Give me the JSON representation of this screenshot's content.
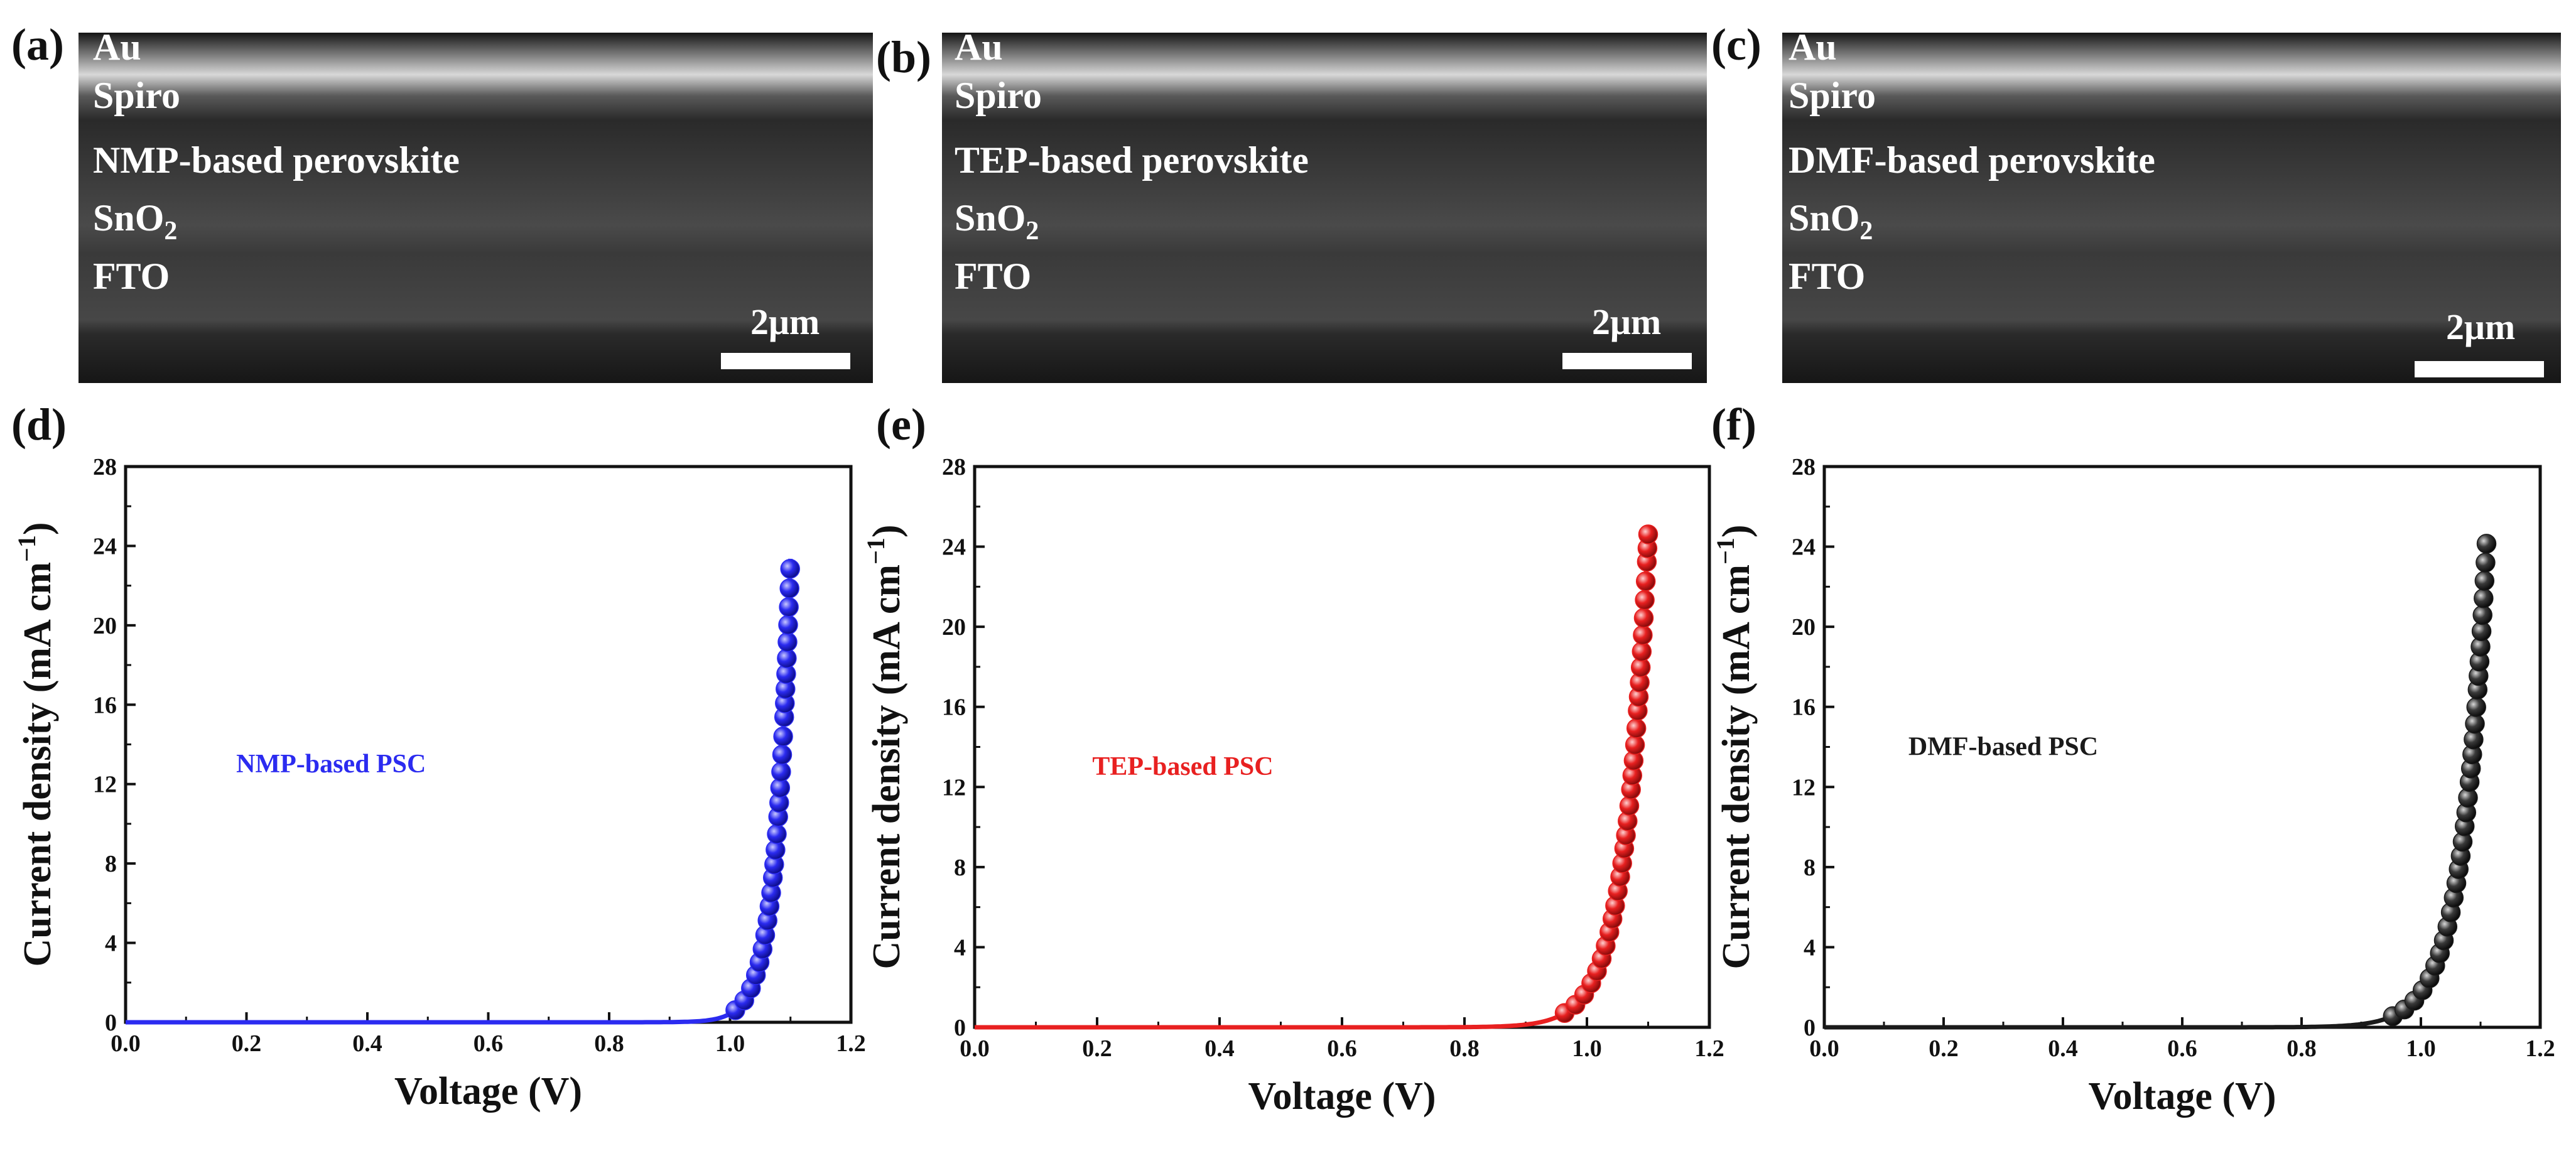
{
  "sem": [
    {
      "panel": "(a)",
      "layers": [
        "Au",
        "Spiro",
        "NMP-based perovskite",
        "SnO",
        "FTO"
      ],
      "sno_subscript": "2",
      "scale_bar": "2μm"
    },
    {
      "panel": "(b)",
      "layers": [
        "Au",
        "Spiro",
        "TEP-based perovskite",
        "SnO",
        "FTO"
      ],
      "sno_subscript": "2",
      "scale_bar": "2μm"
    },
    {
      "panel": "(c)",
      "layers": [
        "Au",
        "Spiro",
        "DMF-based perovskite",
        "SnO",
        "FTO"
      ],
      "sno_subscript": "2",
      "scale_bar": "2μm"
    }
  ],
  "chart_data": [
    {
      "panel": "(d)",
      "type": "line",
      "title": "",
      "xlabel": "Voltage (V)",
      "ylabel": "Current density (mA cm",
      "ylabel_sup": "−1",
      "ylabel_close": ")",
      "xlim": [
        0,
        1.2
      ],
      "ylim": [
        0,
        28
      ],
      "xticks": [
        "0.0",
        "0.2",
        "0.4",
        "0.6",
        "0.8",
        "1.0",
        "1.2"
      ],
      "yticks": [
        "0",
        "4",
        "8",
        "12",
        "16",
        "20",
        "24",
        "28"
      ],
      "annotation": "NMP-based PSC",
      "color": "#2b2bf0",
      "series": [
        {
          "name": "NMP-based PSC",
          "jsc": 24.4,
          "end_j": 23.6,
          "voc": 1.1,
          "knee": 0.84,
          "shape": 40
        }
      ]
    },
    {
      "panel": "(e)",
      "type": "line",
      "title": "",
      "xlabel": "Voltage (V)",
      "ylabel": "Current density (mA cm",
      "ylabel_sup": "−1",
      "ylabel_close": ")",
      "xlim": [
        0,
        1.2
      ],
      "ylim": [
        0,
        28
      ],
      "xticks": [
        "0.0",
        "0.2",
        "0.4",
        "0.6",
        "0.8",
        "1.0",
        "1.2"
      ],
      "yticks": [
        "0",
        "4",
        "8",
        "12",
        "16",
        "20",
        "24",
        "28"
      ],
      "annotation": "TEP-based PSC",
      "color": "#e82020",
      "series": [
        {
          "name": "TEP-based PSC",
          "jsc": 25.3,
          "end_j": 24.8,
          "voc": 1.1,
          "knee": 0.8,
          "shape": 26
        }
      ]
    },
    {
      "panel": "(f)",
      "type": "line",
      "title": "",
      "xlabel": "Voltage (V)",
      "ylabel": "Current density (mA cm",
      "ylabel_sup": "−1",
      "ylabel_close": ")",
      "xlim": [
        0,
        1.2
      ],
      "ylim": [
        0,
        28
      ],
      "xticks": [
        "0.0",
        "0.2",
        "0.4",
        "0.6",
        "0.8",
        "1.0",
        "1.2"
      ],
      "yticks": [
        "0",
        "4",
        "8",
        "12",
        "16",
        "20",
        "24",
        "28"
      ],
      "annotation": "DMF-based PSC",
      "color": "#1a1a1a",
      "series": [
        {
          "name": "DMF-based PSC",
          "jsc": 25.0,
          "end_j": 24.4,
          "voc": 1.11,
          "knee": 0.78,
          "shape": 24
        }
      ]
    }
  ]
}
